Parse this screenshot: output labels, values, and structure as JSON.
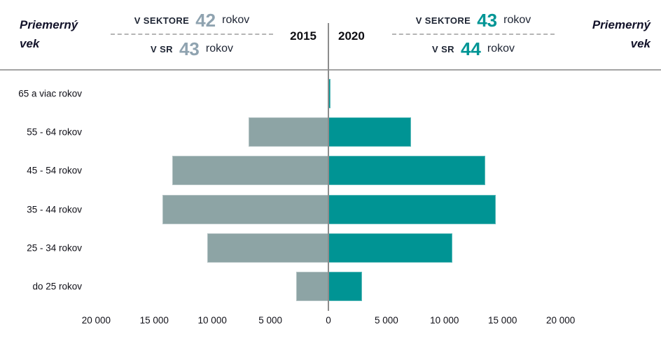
{
  "header": {
    "title_left": {
      "line1": "Priemerný",
      "line2": "vek"
    },
    "title_right": {
      "line1": "Priemerný",
      "line2": "vek"
    },
    "stats_2015": {
      "sector_label": "V SEKTORE",
      "sector_value": "42",
      "sector_unit": "rokov",
      "sr_label": "V SR",
      "sr_value": "43",
      "sr_unit": "rokov"
    },
    "stats_2020": {
      "sector_label": "V SEKTORE",
      "sector_value": "43",
      "sector_unit": "rokov",
      "sr_label": "V SR",
      "sr_value": "44",
      "sr_unit": "rokov"
    }
  },
  "colors": {
    "bar_2015": "#8DA4A5",
    "bar_2020": "#009494",
    "stat_value_2015": "#8FA3B0",
    "stat_value_2020": "#009595",
    "axis_line": "#8c8c8c",
    "header_rule": "#a3a3a3"
  },
  "chart_data": {
    "type": "bar",
    "subtype": "population-pyramid-horizontal",
    "categories": [
      "65 a viac rokov",
      "55 - 64 rokov",
      "45 - 54 rokov",
      "35 - 44 rokov",
      "25 - 34 rokov",
      "do 25 rokov"
    ],
    "series": [
      {
        "name": "2015",
        "side": "left",
        "color": "#8DA4A5",
        "values": [
          0,
          6900,
          13450,
          14300,
          10450,
          2800
        ]
      },
      {
        "name": "2020",
        "side": "right",
        "color": "#009494",
        "values": [
          200,
          7100,
          13500,
          14400,
          10700,
          2900
        ]
      }
    ],
    "annotations": {
      "avg_age_2015_sector": 42,
      "avg_age_2015_sr": 43,
      "avg_age_2020_sector": 43,
      "avg_age_2020_sr": 44
    },
    "x_axis": {
      "tick_labels": [
        "20 000",
        "15 000",
        "10 000",
        "5 000",
        "0",
        "5 000",
        "10 000",
        "15 000",
        "20 000"
      ],
      "tick_values": [
        -20000,
        -15000,
        -10000,
        -5000,
        0,
        5000,
        10000,
        15000,
        20000
      ]
    },
    "xlim": [
      -20000,
      20000
    ],
    "grid": false,
    "legend_position": "top-center"
  }
}
